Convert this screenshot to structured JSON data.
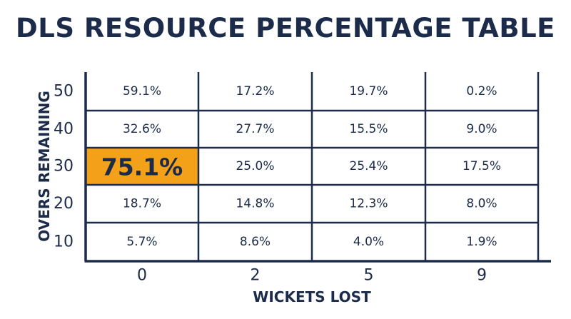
{
  "chart_data": {
    "type": "heatmap",
    "title": "DLS RESOURCE PERCENTAGE TABLE",
    "xlabel": "WICKETS LOST",
    "ylabel": "OVERS REMAINING",
    "x_categories": [
      "0",
      "2",
      "5",
      "9"
    ],
    "y_categories": [
      "50",
      "40",
      "30",
      "20",
      "10"
    ],
    "values": [
      [
        "59.1%",
        "17.2%",
        "19.7%",
        "0.2%"
      ],
      [
        "32.6%",
        "27.7%",
        "15.5%",
        "9.0%"
      ],
      [
        "75.1%",
        "25.0%",
        "25.4%",
        "17.5%"
      ],
      [
        "18.7%",
        "14.8%",
        "12.3%",
        "8.0%"
      ],
      [
        "5.7%",
        "8.6%",
        "4.0%",
        "1.9%"
      ]
    ],
    "highlight": {
      "row": 2,
      "col": 0
    },
    "colors": {
      "text": "#1c2b4a",
      "grid": "#1c2b4a",
      "highlight": "#f2a118"
    },
    "grid": true
  }
}
